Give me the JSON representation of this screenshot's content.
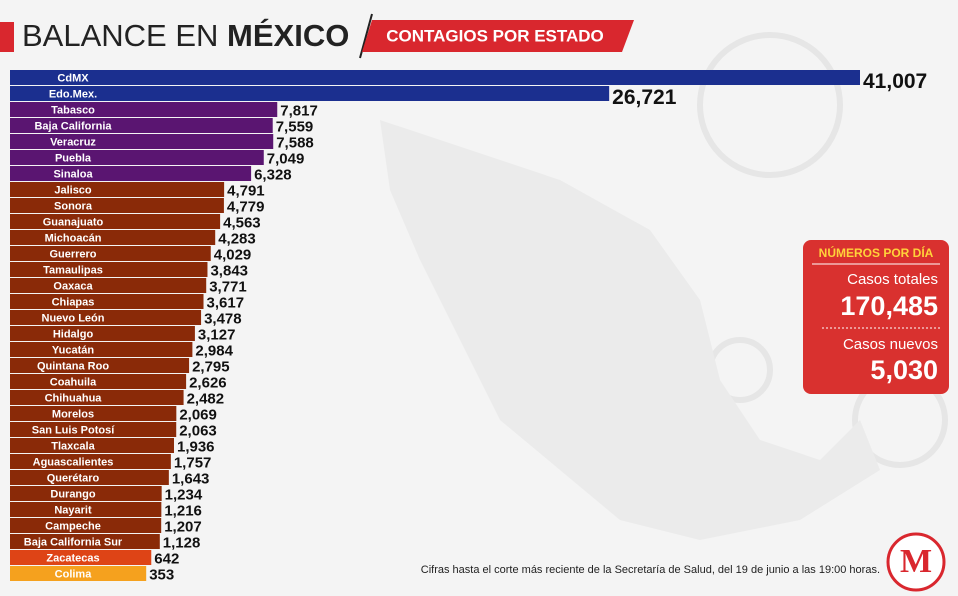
{
  "header": {
    "title_regular": "BALANCE EN",
    "title_bold": "MÉXICO",
    "subtitle": "CONTAGIOS POR ESTADO"
  },
  "chart_data": {
    "type": "bar",
    "orientation": "horizontal",
    "categories": [
      "CdMX",
      "Edo.Mex.",
      "Tabasco",
      "Baja California",
      "Veracruz",
      "Puebla",
      "Sinaloa",
      "Jalisco",
      "Sonora",
      "Guanajuato",
      "Michoacán",
      "Guerrero",
      "Tamaulipas",
      "Oaxaca",
      "Chiapas",
      "Nuevo León",
      "Hidalgo",
      "Yucatán",
      "Quintana Roo",
      "Coahuila",
      "Chihuahua",
      "Morelos",
      "San Luis Potosí",
      "Tlaxcala",
      "Aguascalientes",
      "Querétaro",
      "Durango",
      "Nayarit",
      "Campeche",
      "Baja California Sur",
      "Zacatecas",
      "Colima"
    ],
    "values": [
      41007,
      26721,
      7817,
      7559,
      7588,
      7049,
      6328,
      4791,
      4779,
      4563,
      4283,
      4029,
      3843,
      3771,
      3617,
      3478,
      3127,
      2984,
      2795,
      2626,
      2482,
      2069,
      2063,
      1936,
      1757,
      1643,
      1234,
      1216,
      1207,
      1128,
      642,
      353
    ],
    "value_labels": [
      "41,007",
      "26,721",
      "7,817",
      "7,559",
      "7,588",
      "7,049",
      "6,328",
      "4,791",
      "4,779",
      "4,563",
      "4,283",
      "4,029",
      "3,843",
      "3,771",
      "3,617",
      "3,478",
      "3,127",
      "2,984",
      "2,795",
      "2,626",
      "2,482",
      "2,069",
      "2,063",
      "1,936",
      "1,757",
      "1,643",
      "1,234",
      "1,216",
      "1,207",
      "1,128",
      "642",
      "353"
    ],
    "colors": [
      "#1b2f8f",
      "#1b2f8f",
      "#5a1571",
      "#5a1571",
      "#5a1571",
      "#5a1571",
      "#5a1571",
      "#8a2a08",
      "#8a2a08",
      "#8a2a08",
      "#8a2a08",
      "#8a2a08",
      "#8a2a08",
      "#8a2a08",
      "#8a2a08",
      "#8a2a08",
      "#8a2a08",
      "#8a2a08",
      "#8a2a08",
      "#8a2a08",
      "#8a2a08",
      "#8a2a08",
      "#8a2a08",
      "#8a2a08",
      "#8a2a08",
      "#8a2a08",
      "#8a2a08",
      "#8a2a08",
      "#8a2a08",
      "#8a2a08",
      "#de4416",
      "#f5a11e"
    ]
  },
  "summary": {
    "title": "NÚMEROS POR DÍA",
    "items": [
      {
        "label": "Casos totales",
        "value": "170,485"
      },
      {
        "label": "Casos nuevos",
        "value": "5,030"
      }
    ]
  },
  "footnote": "Cifras hasta el corte más reciente de la Secretaría de Salud, del 19 de junio a las 19:00 horas.",
  "logo": "M"
}
